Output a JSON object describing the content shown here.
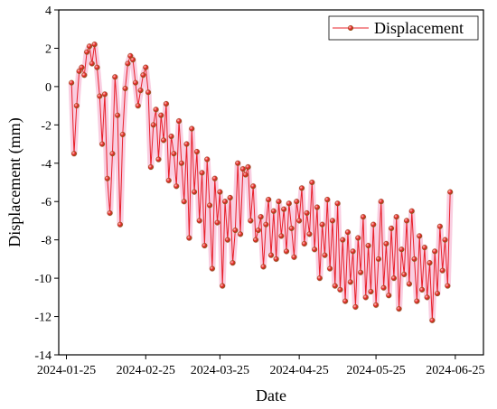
{
  "chart_data": {
    "type": "line",
    "x_label": "Date",
    "y_label": "Displacement (mm)",
    "x": [
      "2024-01-27",
      "2024-01-28",
      "2024-01-29",
      "2024-01-30",
      "2024-01-31",
      "2024-02-01",
      "2024-02-02",
      "2024-02-03",
      "2024-02-04",
      "2024-02-05",
      "2024-02-06",
      "2024-02-07",
      "2024-02-08",
      "2024-02-09",
      "2024-02-10",
      "2024-02-11",
      "2024-02-12",
      "2024-02-13",
      "2024-02-14",
      "2024-02-15",
      "2024-02-16",
      "2024-02-17",
      "2024-02-18",
      "2024-02-19",
      "2024-02-20",
      "2024-02-21",
      "2024-02-22",
      "2024-02-23",
      "2024-02-24",
      "2024-02-25",
      "2024-02-26",
      "2024-02-27",
      "2024-02-28",
      "2024-02-29",
      "2024-03-01",
      "2024-03-02",
      "2024-03-03",
      "2024-03-04",
      "2024-03-05",
      "2024-03-06",
      "2024-03-07",
      "2024-03-08",
      "2024-03-09",
      "2024-03-10",
      "2024-03-11",
      "2024-03-12",
      "2024-03-13",
      "2024-03-14",
      "2024-03-15",
      "2024-03-16",
      "2024-03-17",
      "2024-03-18",
      "2024-03-19",
      "2024-03-20",
      "2024-03-21",
      "2024-03-22",
      "2024-03-23",
      "2024-03-24",
      "2024-03-25",
      "2024-03-26",
      "2024-03-27",
      "2024-03-28",
      "2024-03-29",
      "2024-03-30",
      "2024-03-31",
      "2024-04-01",
      "2024-04-02",
      "2024-04-03",
      "2024-04-04",
      "2024-04-05",
      "2024-04-06",
      "2024-04-07",
      "2024-04-08",
      "2024-04-09",
      "2024-04-10",
      "2024-04-11",
      "2024-04-12",
      "2024-04-13",
      "2024-04-14",
      "2024-04-15",
      "2024-04-16",
      "2024-04-17",
      "2024-04-18",
      "2024-04-19",
      "2024-04-20",
      "2024-04-21",
      "2024-04-22",
      "2024-04-23",
      "2024-04-24",
      "2024-04-25",
      "2024-04-26",
      "2024-04-27",
      "2024-04-28",
      "2024-04-29",
      "2024-04-30",
      "2024-05-01",
      "2024-05-02",
      "2024-05-03",
      "2024-05-04",
      "2024-05-05",
      "2024-05-06",
      "2024-05-07",
      "2024-05-08",
      "2024-05-09",
      "2024-05-10",
      "2024-05-11",
      "2024-05-12",
      "2024-05-13",
      "2024-05-14",
      "2024-05-15",
      "2024-05-16",
      "2024-05-17",
      "2024-05-18",
      "2024-05-19",
      "2024-05-20",
      "2024-05-21",
      "2024-05-22",
      "2024-05-23",
      "2024-05-24",
      "2024-05-25",
      "2024-05-26",
      "2024-05-27",
      "2024-05-28",
      "2024-05-29",
      "2024-05-30",
      "2024-05-31",
      "2024-06-01",
      "2024-06-02",
      "2024-06-03",
      "2024-06-04",
      "2024-06-05",
      "2024-06-06",
      "2024-06-07",
      "2024-06-08",
      "2024-06-09",
      "2024-06-10",
      "2024-06-11",
      "2024-06-12",
      "2024-06-13",
      "2024-06-14",
      "2024-06-15",
      "2024-06-16",
      "2024-06-17",
      "2024-06-18",
      "2024-06-19",
      "2024-06-20",
      "2024-06-21",
      "2024-06-22",
      "2024-06-23"
    ],
    "series": [
      {
        "name": "Displacement",
        "color": "#e8202a",
        "marker_edge": "#8b5a1a",
        "glow": "#f4a6c8",
        "values": [
          0.2,
          -3.5,
          -1.0,
          0.8,
          1.0,
          0.6,
          1.8,
          2.1,
          1.2,
          2.2,
          1.0,
          -0.5,
          -3.0,
          -0.4,
          -4.8,
          -6.6,
          -3.5,
          0.5,
          -1.5,
          -7.2,
          -2.5,
          -0.1,
          1.2,
          1.6,
          1.4,
          0.2,
          -1.0,
          -0.2,
          0.6,
          1.0,
          -0.3,
          -4.2,
          -2.0,
          -1.2,
          -3.8,
          -1.5,
          -2.8,
          -0.9,
          -4.9,
          -2.6,
          -3.5,
          -5.2,
          -1.8,
          -4.0,
          -6.0,
          -3.0,
          -7.9,
          -2.2,
          -5.5,
          -3.4,
          -7.0,
          -4.5,
          -8.3,
          -3.8,
          -6.2,
          -9.5,
          -4.8,
          -7.1,
          -5.5,
          -10.4,
          -6.0,
          -8.0,
          -5.8,
          -9.2,
          -7.5,
          -4.0,
          -7.7,
          -4.3,
          -4.6,
          -4.2,
          -7.0,
          -5.2,
          -8.0,
          -7.5,
          -6.8,
          -9.4,
          -7.2,
          -5.9,
          -8.8,
          -6.5,
          -9.0,
          -6.0,
          -7.8,
          -6.4,
          -8.6,
          -6.1,
          -7.4,
          -8.9,
          -6.0,
          -7.0,
          -5.3,
          -8.2,
          -6.6,
          -7.7,
          -5.0,
          -8.5,
          -6.3,
          -10.0,
          -7.2,
          -8.8,
          -5.9,
          -9.5,
          -7.0,
          -10.4,
          -6.1,
          -10.6,
          -8.0,
          -11.2,
          -7.6,
          -10.2,
          -8.6,
          -11.5,
          -7.9,
          -9.7,
          -6.8,
          -11.0,
          -8.3,
          -10.7,
          -7.2,
          -11.4,
          -9.0,
          -6.0,
          -10.5,
          -8.2,
          -10.9,
          -7.4,
          -10.0,
          -6.8,
          -11.6,
          -8.5,
          -9.8,
          -7.0,
          -10.3,
          -6.5,
          -9.0,
          -11.2,
          -7.8,
          -10.6,
          -8.4,
          -11.0,
          -9.2,
          -12.2,
          -8.6,
          -10.8,
          -7.3,
          -9.6,
          -8.0,
          -10.4,
          -5.5
        ]
      }
    ],
    "xlim": [
      "2024-01-22",
      "2024-07-06"
    ],
    "xticks": [
      "2024-01-25",
      "2024-02-25",
      "2024-03-25",
      "2024-04-25",
      "2024-05-25",
      "2024-06-25"
    ],
    "ylim": [
      -14,
      4
    ],
    "yticks": [
      -14,
      -12,
      -10,
      -8,
      -6,
      -4,
      -2,
      0,
      2,
      4
    ],
    "grid": false,
    "legend": "upper right"
  }
}
